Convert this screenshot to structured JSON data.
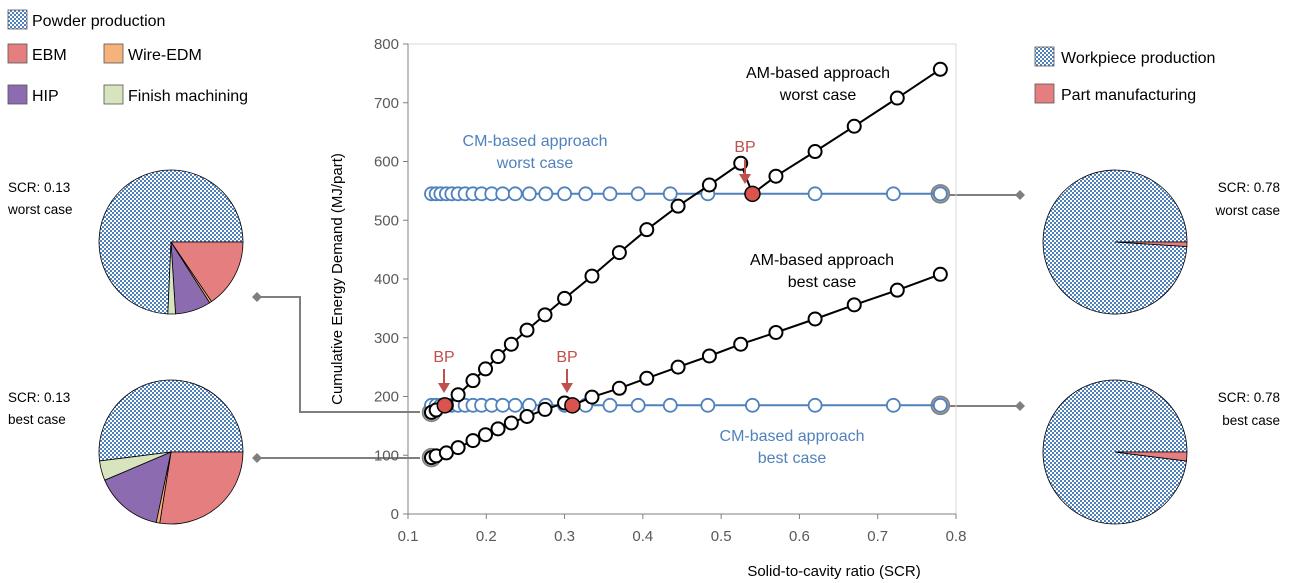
{
  "colors": {
    "cm": "#4f81bd",
    "am": "#000000",
    "bp": "#c0504d",
    "bp_fill": "#d9534f",
    "connector": "#7f7f7f",
    "grey_marker": "#a6a6a6",
    "axis": "#808080"
  },
  "legend_left": [
    {
      "label": "Powder production",
      "pattern": "checker",
      "color": "#4f81bd"
    },
    {
      "label": "EBM",
      "color": "#e57f7f"
    },
    {
      "label": "Wire-EDM",
      "color": "#f5b27b"
    },
    {
      "label": "HIP",
      "color": "#8c6bb1"
    },
    {
      "label": "Finish machining",
      "color": "#d7e4bd"
    }
  ],
  "legend_right": [
    {
      "label": "Workpiece production",
      "pattern": "checker",
      "color": "#4f81bd"
    },
    {
      "label": "Part manufacturing",
      "color": "#e57f7f"
    }
  ],
  "pie_labels": {
    "top_left": [
      "SCR: 0.13",
      "worst case"
    ],
    "bottom_left": [
      "SCR: 0.13",
      "best case"
    ],
    "top_right": [
      "SCR: 0.78",
      "worst case"
    ],
    "bottom_right": [
      "SCR: 0.78",
      "best case"
    ]
  },
  "pies": {
    "top_left": [
      {
        "name": "Powder production",
        "value": 74.3
      },
      {
        "name": "EBM",
        "value": 15.5
      },
      {
        "name": "Wire-EDM",
        "value": 0.5
      },
      {
        "name": "HIP",
        "value": 8.0
      },
      {
        "name": "Finish machining",
        "value": 1.7
      }
    ],
    "bottom_left": [
      {
        "name": "Powder production",
        "value": 52.0
      },
      {
        "name": "EBM",
        "value": 27.5
      },
      {
        "name": "Wire-EDM",
        "value": 0.8
      },
      {
        "name": "HIP",
        "value": 15.3
      },
      {
        "name": "Finish machining",
        "value": 4.4
      }
    ],
    "top_right": [
      {
        "name": "Workpiece production",
        "value": 99.0
      },
      {
        "name": "Part manufacturing",
        "value": 1.0
      }
    ],
    "bottom_right": [
      {
        "name": "Workpiece production",
        "value": 98.0
      },
      {
        "name": "Part manufacturing",
        "value": 2.0
      }
    ]
  },
  "annotations": {
    "am_worst": [
      "AM-based approach",
      "worst case"
    ],
    "am_best": [
      "AM-based approach",
      "best case"
    ],
    "cm_worst": [
      "CM-based approach",
      "worst case"
    ],
    "cm_best": [
      "CM-based approach",
      "best case"
    ],
    "bp": "BP"
  },
  "chart_data": {
    "type": "line",
    "title": "",
    "xlabel": "Solid-to-cavity ratio (SCR)",
    "ylabel": "Cumulative  Energy Demand (MJ/part)",
    "xlim": [
      0.1,
      0.8
    ],
    "ylim": [
      0,
      800
    ],
    "xticks": [
      "0.1",
      "0.2",
      "0.3",
      "0.4",
      "0.5",
      "0.6",
      "0.7",
      "0.8"
    ],
    "yticks": [
      "0",
      "100",
      "200",
      "300",
      "400",
      "500",
      "600",
      "700",
      "800"
    ],
    "grid": false,
    "legend": "none",
    "series": [
      {
        "name": "CM-based approach worst case",
        "color": "#4f81bd",
        "x": [
          0.13,
          0.136,
          0.142,
          0.149,
          0.156,
          0.164,
          0.173,
          0.183,
          0.194,
          0.207,
          0.221,
          0.237,
          0.255,
          0.276,
          0.3,
          0.327,
          0.358,
          0.394,
          0.435,
          0.483,
          0.54,
          0.62,
          0.72,
          0.78
        ],
        "y": [
          545,
          545,
          545,
          545,
          545,
          545,
          545,
          545,
          545,
          545,
          545,
          545,
          545,
          545,
          545,
          545,
          545,
          545,
          545,
          545,
          545,
          545,
          545,
          545
        ]
      },
      {
        "name": "CM-based approach best case",
        "color": "#4f81bd",
        "x": [
          0.13,
          0.136,
          0.142,
          0.149,
          0.156,
          0.164,
          0.173,
          0.183,
          0.194,
          0.207,
          0.221,
          0.237,
          0.255,
          0.276,
          0.3,
          0.327,
          0.358,
          0.394,
          0.435,
          0.483,
          0.54,
          0.62,
          0.72,
          0.78
        ],
        "y": [
          185,
          185,
          185,
          185,
          185,
          185,
          185,
          185,
          185,
          185,
          185,
          185,
          185,
          185,
          185,
          185,
          185,
          185,
          185,
          185,
          185,
          185,
          185,
          185
        ]
      },
      {
        "name": "AM-based approach worst case",
        "color": "#000000",
        "x": [
          0.13,
          0.136,
          0.149,
          0.164,
          0.183,
          0.199,
          0.215,
          0.232,
          0.252,
          0.275,
          0.3,
          0.335,
          0.37,
          0.405,
          0.445,
          0.485,
          0.525,
          0.54,
          0.57,
          0.62,
          0.67,
          0.725,
          0.78
        ],
        "y": [
          173,
          177,
          185,
          203,
          227,
          247,
          268,
          289,
          313,
          339,
          367,
          405,
          445,
          484,
          524,
          560,
          597,
          545,
          575,
          617,
          660,
          708,
          757
        ]
      },
      {
        "name": "AM-based approach best case",
        "color": "#000000",
        "x": [
          0.13,
          0.136,
          0.149,
          0.164,
          0.183,
          0.199,
          0.215,
          0.232,
          0.252,
          0.275,
          0.3,
          0.31,
          0.335,
          0.37,
          0.405,
          0.445,
          0.485,
          0.525,
          0.57,
          0.62,
          0.67,
          0.725,
          0.78
        ],
        "y": [
          96,
          99,
          104,
          113,
          125,
          135,
          145,
          155,
          166,
          178,
          189,
          185,
          199,
          214,
          231,
          250,
          269,
          289,
          309,
          332,
          356,
          381,
          408
        ]
      }
    ],
    "break_even_points": [
      {
        "label": "BP",
        "x": 0.54,
        "y": 545
      },
      {
        "label": "BP",
        "x": 0.147,
        "y": 185
      },
      {
        "label": "BP",
        "x": 0.31,
        "y": 185
      }
    ],
    "highlighted_points": [
      {
        "x": 0.13,
        "y": 173
      },
      {
        "x": 0.13,
        "y": 96
      },
      {
        "x": 0.78,
        "y": 545
      },
      {
        "x": 0.78,
        "y": 185
      }
    ]
  }
}
